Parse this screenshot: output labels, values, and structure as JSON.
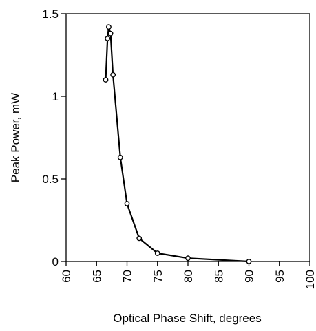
{
  "chart_data": {
    "type": "line",
    "xlabel": "Optical Phase Shift, degrees",
    "ylabel": "Peak Power, mW",
    "xlim": [
      60,
      100
    ],
    "ylim": [
      0,
      1.5
    ],
    "xticks": [
      60,
      65,
      70,
      75,
      80,
      85,
      90,
      95,
      100
    ],
    "xtick_labels": [
      "60",
      "65",
      "70",
      "75",
      "80",
      "85",
      "90",
      "95",
      "100"
    ],
    "yticks": [
      0,
      0.5,
      1,
      1.5
    ],
    "ytick_labels": [
      "0",
      "0.5",
      "1",
      "1.5"
    ],
    "grid": false,
    "legend": "none",
    "series": [
      {
        "color": "#000000",
        "marker": "open-circle",
        "x": [
          66.5,
          66.8,
          67.0,
          67.3,
          67.7,
          68.9,
          70.0,
          72.0,
          75.0,
          80.0,
          90.0
        ],
        "y": [
          1.1,
          1.35,
          1.42,
          1.38,
          1.13,
          0.63,
          0.35,
          0.14,
          0.05,
          0.02,
          0.0
        ]
      }
    ]
  }
}
